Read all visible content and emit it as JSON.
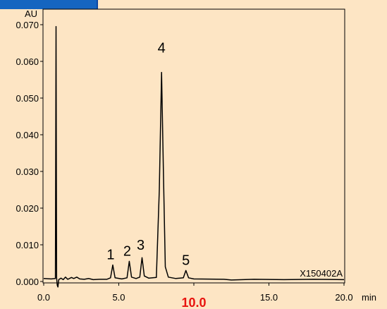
{
  "chart_data": {
    "type": "line",
    "x_unit": "min",
    "y_unit": "AU",
    "xlim": [
      0,
      20
    ],
    "ylim": [
      0,
      0.075
    ],
    "x_ticks": [
      {
        "value": 0,
        "label": "0.0"
      },
      {
        "value": 5,
        "label": "5.0"
      },
      {
        "value": 15,
        "label": "15.0"
      },
      {
        "value": 20,
        "label": "20.0"
      }
    ],
    "x_highlight_tick": {
      "value": 10,
      "label": "10.0",
      "color": "#e8140f"
    },
    "y_ticks": [
      {
        "value": 0.0,
        "label": "0.000"
      },
      {
        "value": 0.01,
        "label": "0.010"
      },
      {
        "value": 0.02,
        "label": "0.020"
      },
      {
        "value": 0.03,
        "label": "0.030"
      },
      {
        "value": 0.04,
        "label": "0.040"
      },
      {
        "value": 0.05,
        "label": "0.050"
      },
      {
        "value": 0.06,
        "label": "0.060"
      },
      {
        "value": 0.07,
        "label": "0.070"
      }
    ],
    "series": [
      {
        "points": [
          [
            0.0,
            0.0008
          ],
          [
            0.5,
            0.0007
          ],
          [
            0.78,
            0.0008
          ],
          [
            0.82,
            0.0695
          ],
          [
            0.86,
            0.001
          ],
          [
            0.9,
            -0.001
          ],
          [
            0.95,
            -0.0015
          ],
          [
            1.0,
            0.0005
          ],
          [
            1.15,
            0.0009
          ],
          [
            1.3,
            0.0005
          ],
          [
            1.45,
            0.0012
          ],
          [
            1.6,
            0.0006
          ],
          [
            1.85,
            0.0011
          ],
          [
            2.0,
            0.0008
          ],
          [
            2.2,
            0.0012
          ],
          [
            2.4,
            0.0007
          ],
          [
            2.7,
            0.0006
          ],
          [
            3.0,
            0.0008
          ],
          [
            3.3,
            0.0005
          ],
          [
            3.7,
            0.0006
          ],
          [
            4.2,
            0.0006
          ],
          [
            4.45,
            0.001
          ],
          [
            4.6,
            0.0045
          ],
          [
            4.75,
            0.001
          ],
          [
            5.2,
            0.0007
          ],
          [
            5.55,
            0.001
          ],
          [
            5.7,
            0.0055
          ],
          [
            5.85,
            0.0012
          ],
          [
            6.15,
            0.0008
          ],
          [
            6.4,
            0.0012
          ],
          [
            6.55,
            0.0065
          ],
          [
            6.7,
            0.0015
          ],
          [
            7.0,
            0.0009
          ],
          [
            7.5,
            0.0011
          ],
          [
            7.7,
            0.025
          ],
          [
            7.85,
            0.057
          ],
          [
            7.97,
            0.03
          ],
          [
            8.1,
            0.004
          ],
          [
            8.3,
            0.0012
          ],
          [
            8.8,
            0.0008
          ],
          [
            9.3,
            0.001
          ],
          [
            9.47,
            0.003
          ],
          [
            9.65,
            0.001
          ],
          [
            10.0,
            0.0007
          ],
          [
            12.0,
            0.0006
          ],
          [
            12.5,
            0.0004
          ],
          [
            14.0,
            0.0006
          ],
          [
            16.0,
            0.0005
          ],
          [
            18.0,
            0.0006
          ],
          [
            20.0,
            0.0005
          ]
        ]
      }
    ],
    "peaks": [
      {
        "label": "1",
        "x": 4.6,
        "y": 0.0045
      },
      {
        "label": "2",
        "x": 5.7,
        "y": 0.0055
      },
      {
        "label": "3",
        "x": 6.55,
        "y": 0.0065
      },
      {
        "label": "4",
        "x": 7.85,
        "y": 0.057
      },
      {
        "label": "5",
        "x": 9.47,
        "y": 0.003
      }
    ],
    "sample_id": "X150402A",
    "grid": false,
    "line_color": "#000000"
  },
  "theme": {
    "background": "#fde5c4",
    "tab_color": "#1565c0"
  }
}
